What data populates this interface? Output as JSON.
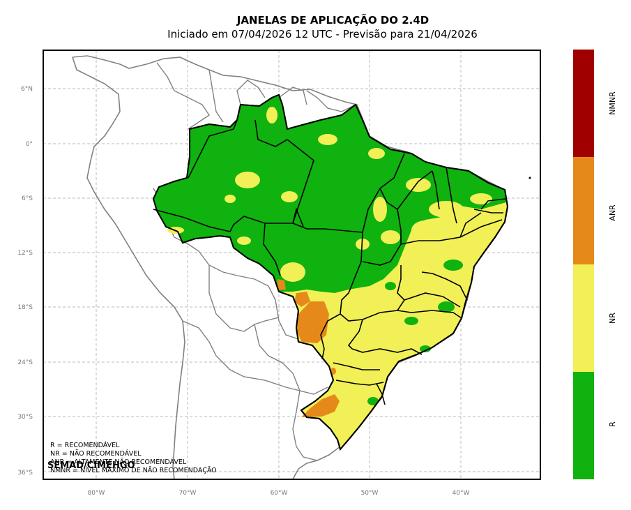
{
  "title": "JANELAS DE APLICAÇÃO DO 2.4D",
  "subtitle": "Iniciado em 07/04/2026 12 UTC - Previsão para 21/04/2026",
  "lat_ticks": [
    "6°N",
    "0°",
    "6°S",
    "12°S",
    "18°S",
    "24°S",
    "30°S",
    "36°S"
  ],
  "lon_ticks": [
    "80°W",
    "70°W",
    "60°W",
    "50°W",
    "40°W"
  ],
  "colorbar": [
    {
      "label": "NMNR",
      "color": "#a00000"
    },
    {
      "label": "ANR",
      "color": "#e58a1a"
    },
    {
      "label": "NR",
      "color": "#f2f057"
    },
    {
      "label": "R",
      "color": "#0fb20f"
    }
  ],
  "legend": [
    "R = RECOMENDÁVEL",
    "NR = NÃO RECOMENDÁVEL",
    "ANR = ALTAMENTE NÃO RECOMENDÁVEL",
    "NMNR = NÍVEL MÁXIMO DE NÃO RECOMENDAÇÃO"
  ],
  "credit": "SEMAD/CIMEHGO",
  "colors": {
    "green": "#0fb20f",
    "yellow": "#f2f057",
    "orange": "#e58a1a",
    "grid": "#bbbbbb",
    "coast": "#808080"
  }
}
